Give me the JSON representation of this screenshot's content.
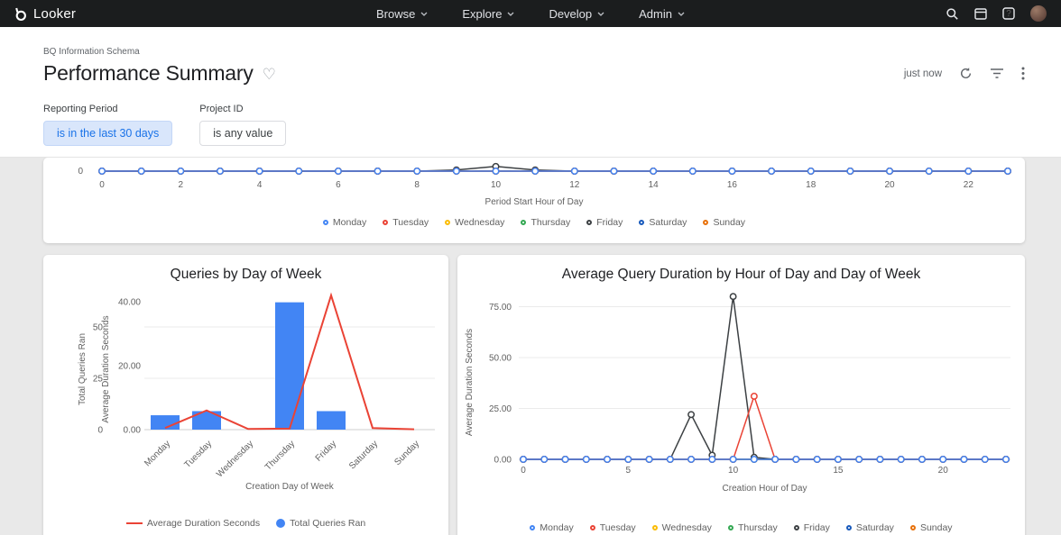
{
  "nav": {
    "brand": "Looker",
    "items": [
      "Browse",
      "Explore",
      "Develop",
      "Admin"
    ]
  },
  "header": {
    "breadcrumb": "BQ Information Schema",
    "title": "Performance Summary",
    "refresh_status": "just now"
  },
  "filters": [
    {
      "label": "Reporting Period",
      "value": "is in the last 30 days",
      "state": "active"
    },
    {
      "label": "Project ID",
      "value": "is any value",
      "state": "default"
    }
  ],
  "day_colors": {
    "Monday": "#4285F4",
    "Tuesday": "#EA4335",
    "Wednesday": "#FBBC04",
    "Thursday": "#34A853",
    "Friday": "#3C4043",
    "Saturday": "#185ABC",
    "Sunday": "#E8710A"
  },
  "chart_data": [
    {
      "id": "queries-by-hour-partial",
      "type": "line",
      "title": "",
      "note": "chart cropped at top of viewport; only zero baseline region visible",
      "xlabel": "Period Start Hour of Day",
      "x_hours": 24,
      "x_ticks": [
        0,
        2,
        4,
        6,
        8,
        10,
        12,
        14,
        16,
        18,
        20,
        22
      ],
      "visible_y_ticks": [
        "0"
      ],
      "series": [
        {
          "name": "Monday",
          "color": "#4285F4",
          "default": 0,
          "points": {}
        },
        {
          "name": "Tuesday",
          "color": "#EA4335",
          "default": 0,
          "points": {}
        },
        {
          "name": "Wednesday",
          "color": "#FBBC04",
          "default": 0,
          "points": {}
        },
        {
          "name": "Thursday",
          "color": "#34A853",
          "default": 0,
          "points": {}
        },
        {
          "name": "Friday",
          "color": "#3C4043",
          "default": 0,
          "points": {
            "9": 1,
            "10": 4,
            "11": 1
          }
        },
        {
          "name": "Saturday",
          "color": "#185ABC",
          "default": 0,
          "points": {}
        },
        {
          "name": "Sunday",
          "color": "#E8710A",
          "default": 0,
          "points": {}
        }
      ]
    },
    {
      "id": "queries-by-day-of-week",
      "type": "bar",
      "title": "Queries by Day of Week",
      "xlabel": "Creation Day of Week",
      "categories": [
        "Monday",
        "Tuesday",
        "Wednesday",
        "Thursday",
        "Friday",
        "Saturday",
        "Sunday"
      ],
      "bars": {
        "name": "Total Queries Ran",
        "color": "#4285F4",
        "axis": "left",
        "values": [
          7,
          9,
          0,
          62,
          9,
          0,
          0
        ]
      },
      "line": {
        "name": "Average Duration Seconds",
        "color": "#EA4335",
        "axis": "right",
        "values": [
          0.5,
          6,
          0.2,
          0.3,
          42,
          0.5,
          0.1
        ]
      },
      "left_axis": {
        "label": "Total Queries Ran",
        "color": "#4285F4",
        "ticks": [
          0,
          25,
          50
        ],
        "max": 64
      },
      "right_axis": {
        "label": "Average Duration Seconds",
        "color": "#EA4335",
        "ticks": [
          "0.00",
          "20.00",
          "40.00"
        ],
        "tick_values": [
          0,
          20,
          40
        ],
        "max": 45
      },
      "legend": [
        {
          "label": "Average Duration Seconds",
          "color": "#EA4335",
          "swatch": "line"
        },
        {
          "label": "Total Queries Ran",
          "color": "#4285F4",
          "swatch": "dot"
        }
      ]
    },
    {
      "id": "avg-query-duration-by-hour-and-day",
      "type": "line",
      "title": "Average Query Duration by Hour of Day and Day of Week",
      "xlabel": "Creation Hour of Day",
      "ylabel": "Average Duration Seconds",
      "x_hours": 24,
      "x_ticks": [
        0,
        5,
        10,
        15,
        20
      ],
      "y_ticks": [
        "0.00",
        "25.00",
        "50.00",
        "75.00"
      ],
      "y_tick_values": [
        0,
        25,
        50,
        75
      ],
      "ylim": [
        0,
        85
      ],
      "series": [
        {
          "name": "Monday",
          "color": "#4285F4",
          "default": 0,
          "points": {}
        },
        {
          "name": "Tuesday",
          "color": "#EA4335",
          "default": 0,
          "points": {
            "11": 31
          }
        },
        {
          "name": "Wednesday",
          "color": "#FBBC04",
          "default": 0,
          "points": {}
        },
        {
          "name": "Thursday",
          "color": "#34A853",
          "default": 0,
          "points": {}
        },
        {
          "name": "Friday",
          "color": "#3C4043",
          "default": 0,
          "points": {
            "8": 22,
            "9": 2,
            "10": 80,
            "11": 1
          }
        },
        {
          "name": "Saturday",
          "color": "#185ABC",
          "default": 0,
          "points": {}
        },
        {
          "name": "Sunday",
          "color": "#E8710A",
          "default": 0,
          "points": {}
        }
      ]
    }
  ]
}
